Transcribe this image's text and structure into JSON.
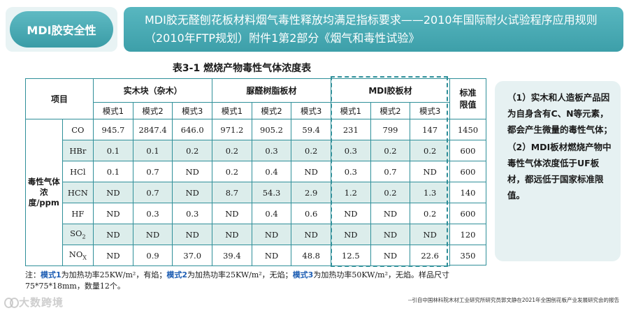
{
  "header": {
    "section_label": "MDI胶安全性",
    "title": "MDI胶无醛刨花板材料烟气毒性释放均满足指标要求——2010年国际耐火试验程序应用规则（2010年FTP规划）附件1第2部分《烟气和毒性试验》"
  },
  "table": {
    "title": "表3-1 燃烧产物毒性气体浓度表",
    "item_header": "项目",
    "groups": [
      "实木块（杂木）",
      "脲醛树脂板材",
      "MDI胶板材"
    ],
    "mode_labels": [
      "模式1",
      "模式2",
      "模式3",
      "模式1",
      "模式2",
      "模式3",
      "模式1",
      "模式2",
      "模式3"
    ],
    "std_header": "标准\n限值",
    "row_group_label": "毒性气体浓度/ppm",
    "rows": [
      {
        "gas": "CO",
        "sub": "",
        "values": [
          "945.7",
          "2847.4",
          "646.0",
          "971.2",
          "905.2",
          "59.4",
          "231",
          "799",
          "147"
        ],
        "std": "1450"
      },
      {
        "gas": "HBr",
        "sub": "",
        "values": [
          "0.1",
          "0.1",
          "0.2",
          "0.2",
          "0.3",
          "0.2",
          "0.3",
          "0.2",
          "0.2"
        ],
        "std": "600"
      },
      {
        "gas": "HCl",
        "sub": "",
        "values": [
          "0.1",
          "0.7",
          "ND",
          "0.2",
          "0.4",
          "ND",
          "0.3",
          "0.7",
          "ND"
        ],
        "std": "600"
      },
      {
        "gas": "HCN",
        "sub": "",
        "values": [
          "ND",
          "0.7",
          "ND",
          "8.7",
          "54.3",
          "2.9",
          "1.2",
          "0.2",
          "1.3"
        ],
        "std": "140"
      },
      {
        "gas": "HF",
        "sub": "",
        "values": [
          "ND",
          "0.3",
          "0.3",
          "ND",
          "0.4",
          "0.6",
          "ND",
          "ND",
          "0.2"
        ],
        "std": "600"
      },
      {
        "gas": "SO",
        "sub": "2",
        "values": [
          "ND",
          "ND",
          "ND",
          "ND",
          "ND",
          "ND",
          "ND",
          "ND",
          "ND"
        ],
        "std": "120"
      },
      {
        "gas": "NO",
        "sub": "X",
        "values": [
          "ND",
          "0.9",
          "37.0",
          "39.4",
          "ND",
          "48.8",
          "12.5",
          "ND",
          "22.6"
        ],
        "std": "350"
      }
    ]
  },
  "notes": [
    "（1）实木和人造板产品因为自身含有C、N等元素，都会产生微量的毒性气体；",
    "（2）MDI板材燃烧产物中毒性气体浓度低于UF板材，都远低于国家标准限值。"
  ],
  "footnote": {
    "prefix": "注：",
    "m1": "模式1",
    "t1": "为加热功率25KW/m²，有焰；",
    "m2": "模式2",
    "t2": "为加热功率25KW/m²，无焰；",
    "m3": "模式3",
    "t3": "为加热功率50KW/m²，无焰。样品尺寸75*75*18mm，数量12个。"
  },
  "source": "--引自中国林科院木材工业研究所研究员郭文静在2021年全国刨花板产业发展研究会的报告",
  "watermark": "大数跨境",
  "colors": {
    "accent": "#3d9fa9",
    "border": "#2f8f99",
    "shade": "#dcedeb",
    "highlight": "#1f5fb4"
  }
}
